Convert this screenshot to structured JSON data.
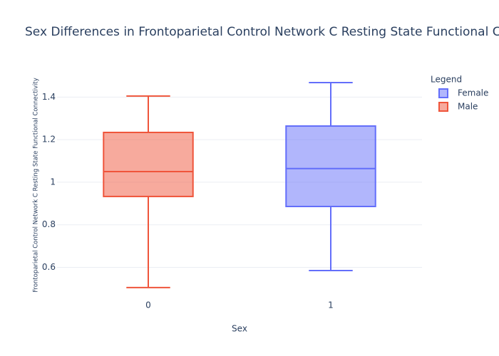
{
  "chart_data": {
    "type": "box",
    "title": "Sex Differences in Frontoparietal Control Network C Resting State Functional Connectivity",
    "x_label": "Sex",
    "y_label": "Frontoparietal Control Network C Resting State Functional Connectivity",
    "legend_title": "Legend",
    "categories": [
      "0",
      "1"
    ],
    "series": [
      {
        "name": "Female",
        "color": "#636efa",
        "x": [
          "1"
        ],
        "min": [
          0.585
        ],
        "q1": [
          0.886
        ],
        "median": [
          1.064
        ],
        "q3": [
          1.264
        ],
        "max": [
          1.468
        ]
      },
      {
        "name": "Male",
        "color": "#ef553b",
        "x": [
          "0"
        ],
        "min": [
          0.505
        ],
        "q1": [
          0.933
        ],
        "median": [
          1.05
        ],
        "q3": [
          1.234
        ],
        "max": [
          1.405
        ]
      }
    ],
    "ylim": [
      0.451,
      1.505
    ],
    "yticks": [
      0.6,
      0.8,
      1,
      1.2,
      1.4
    ],
    "grid": true
  }
}
